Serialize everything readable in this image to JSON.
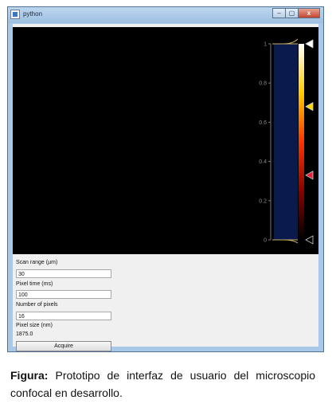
{
  "window": {
    "title": "python",
    "controls": [
      "–",
      "▢",
      "x"
    ]
  },
  "histogram": {
    "ticks": [
      "1",
      "0.8",
      "0.6",
      "0.4",
      "0.2",
      "0"
    ],
    "tick_values": [
      1,
      0.8,
      0.6,
      0.4,
      0.2,
      0
    ],
    "colormap": {
      "stops": [
        "#000000",
        "#8b0000",
        "#ff3300",
        "#ffcc00",
        "#ffffff"
      ]
    },
    "handles": [
      {
        "value": 1.0,
        "color": "#ffffff"
      },
      {
        "value": 0.68,
        "color": "#ffd700"
      },
      {
        "value": 0.33,
        "color": "#e8213a"
      },
      {
        "value": 0.0,
        "color": "#000000"
      }
    ],
    "region_color": "#0b1a4d"
  },
  "form": {
    "scan_range": {
      "label": "Scan range (µm)",
      "value": "30"
    },
    "pixel_time": {
      "label": "Pixel time (ms)",
      "value": "100"
    },
    "num_pixels": {
      "label": "Number of pixels",
      "value": "16"
    },
    "pixel_size": {
      "label": "Pixel size (nm)",
      "value": "1875.0"
    },
    "acquire_label": "Acquire"
  },
  "caption": {
    "label": "Figura:",
    "text": " Prototipo de interfaz de usuario del microscopio confocal en desarrollo."
  }
}
